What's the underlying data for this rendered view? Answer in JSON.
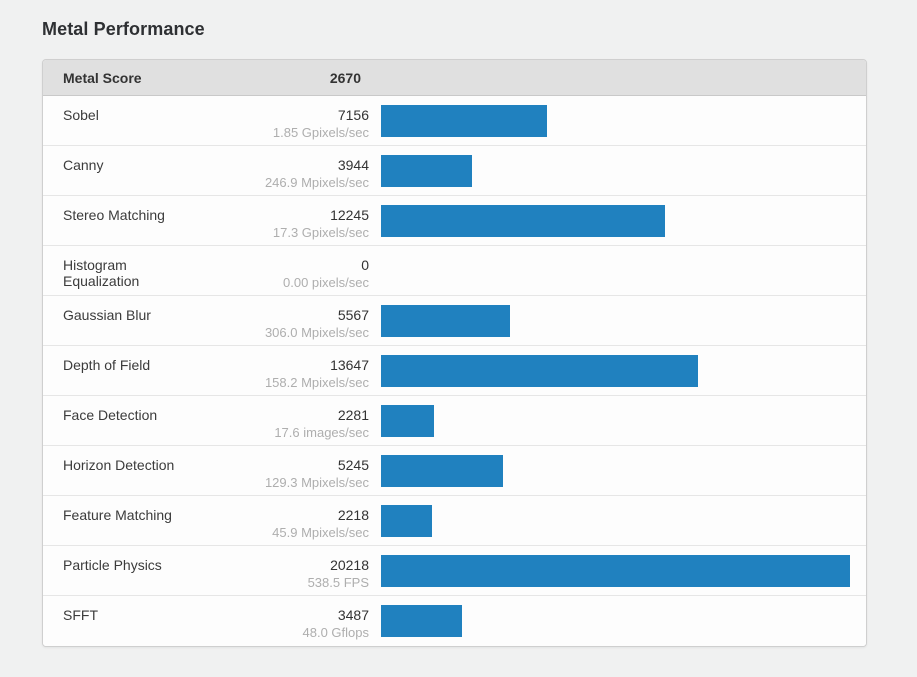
{
  "header": {
    "title": "Metal Performance"
  },
  "table": {
    "header": {
      "label": "Metal Score",
      "score": "2670"
    },
    "bar_color": "#2081bf",
    "max_score": 20218,
    "rows": [
      {
        "label": "Sobel",
        "score": 7156,
        "rate": "1.85 Gpixels/sec"
      },
      {
        "label": "Canny",
        "score": 3944,
        "rate": "246.9 Mpixels/sec"
      },
      {
        "label": "Stereo Matching",
        "score": 12245,
        "rate": "17.3 Gpixels/sec"
      },
      {
        "label": "Histogram Equalization",
        "score": 0,
        "rate": "0.00 pixels/sec"
      },
      {
        "label": "Gaussian Blur",
        "score": 5567,
        "rate": "306.0 Mpixels/sec"
      },
      {
        "label": "Depth of Field",
        "score": 13647,
        "rate": "158.2 Mpixels/sec"
      },
      {
        "label": "Face Detection",
        "score": 2281,
        "rate": "17.6 images/sec"
      },
      {
        "label": "Horizon Detection",
        "score": 5245,
        "rate": "129.3 Mpixels/sec"
      },
      {
        "label": "Feature Matching",
        "score": 2218,
        "rate": "45.9 Mpixels/sec"
      },
      {
        "label": "Particle Physics",
        "score": 20218,
        "rate": "538.5 FPS"
      },
      {
        "label": "SFFT",
        "score": 3487,
        "rate": "48.0 Gflops"
      }
    ]
  },
  "chart_data": {
    "type": "bar",
    "orientation": "horizontal",
    "title": "Metal Performance",
    "summary_label": "Metal Score",
    "summary_value": 2670,
    "categories": [
      "Sobel",
      "Canny",
      "Stereo Matching",
      "Histogram Equalization",
      "Gaussian Blur",
      "Depth of Field",
      "Face Detection",
      "Horizon Detection",
      "Feature Matching",
      "Particle Physics",
      "SFFT"
    ],
    "values": [
      7156,
      3944,
      12245,
      0,
      5567,
      13647,
      2281,
      5245,
      2218,
      20218,
      3487
    ],
    "value_sublabels": [
      "1.85 Gpixels/sec",
      "246.9 Mpixels/sec",
      "17.3 Gpixels/sec",
      "0.00 pixels/sec",
      "306.0 Mpixels/sec",
      "158.2 Mpixels/sec",
      "17.6 images/sec",
      "129.3 Mpixels/sec",
      "45.9 Mpixels/sec",
      "538.5 FPS",
      "48.0 Gflops"
    ],
    "xlim": [
      0,
      20218
    ],
    "bar_color": "#2081bf",
    "grid": false,
    "legend": false
  }
}
